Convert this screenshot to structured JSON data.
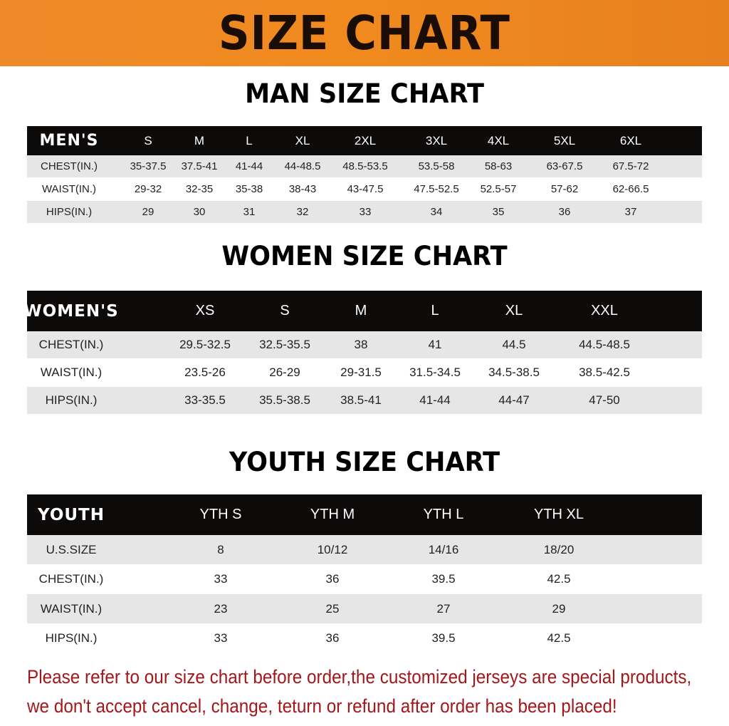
{
  "title": "SIZE CHART",
  "colors": {
    "banner": "#f08a1e",
    "header_row": "#0d0a0a",
    "stripe": "#e6e6e6",
    "note": "#a3171b"
  },
  "men": {
    "section_title": "MAN SIZE CHART",
    "header": [
      "MEN'S",
      "S",
      "M",
      "L",
      "XL",
      "2XL",
      "3XL",
      "4XL",
      "5XL",
      "6XL"
    ],
    "rows": [
      [
        "CHEST(IN.)",
        "35-37.5",
        "37.5-41",
        "41-44",
        "44-48.5",
        "48.5-53.5",
        "53.5-58",
        "58-63",
        "63-67.5",
        "67.5-72"
      ],
      [
        "WAIST(IN.)",
        "29-32",
        "32-35",
        "35-38",
        "38-43",
        "43-47.5",
        "47.5-52.5",
        "52.5-57",
        "57-62",
        "62-66.5"
      ],
      [
        "HIPS(IN.)",
        "29",
        "30",
        "31",
        "32",
        "33",
        "34",
        "35",
        "36",
        "37"
      ]
    ]
  },
  "women": {
    "section_title": "WOMEN SIZE CHART",
    "header": [
      "WOMEN'S",
      "XS",
      "S",
      "M",
      "L",
      "XL",
      "XXL"
    ],
    "rows": [
      [
        "CHEST(IN.)",
        "29.5-32.5",
        "32.5-35.5",
        "38",
        "41",
        "44.5",
        "44.5-48.5"
      ],
      [
        "WAIST(IN.)",
        "23.5-26",
        "26-29",
        "29-31.5",
        "31.5-34.5",
        "34.5-38.5",
        "38.5-42.5"
      ],
      [
        "HIPS(IN.)",
        "33-35.5",
        "35.5-38.5",
        "38.5-41",
        "41-44",
        "44-47",
        "47-50"
      ]
    ]
  },
  "youth": {
    "section_title": "YOUTH SIZE CHART",
    "header": [
      "YOUTH",
      "YTH S",
      "YTH M",
      "YTH L",
      "YTH XL"
    ],
    "rows": [
      [
        "U.S.SIZE",
        "8",
        "10/12",
        "14/16",
        "18/20"
      ],
      [
        "CHEST(IN.)",
        "33",
        "36",
        "39.5",
        "42.5"
      ],
      [
        "WAIST(IN.)",
        "23",
        "25",
        "27",
        "29"
      ],
      [
        "HIPS(IN.)",
        "33",
        "36",
        "39.5",
        "42.5"
      ]
    ]
  },
  "note": {
    "line1": "Please refer to our size chart before order,the customized jerseys are special products,",
    "line2": "we don't accept cancel, change, teturn or refund after order has been placed!"
  }
}
